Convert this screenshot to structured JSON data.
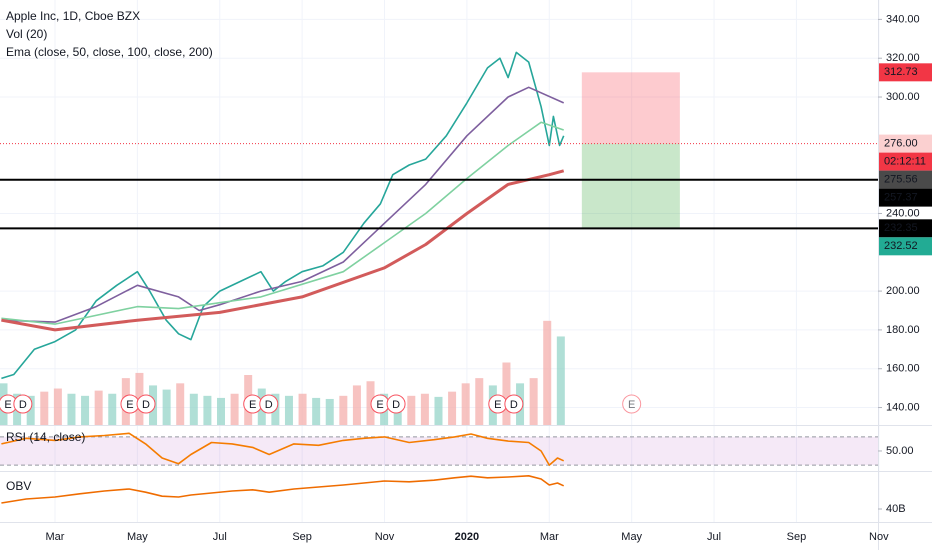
{
  "chart_data": [
    {
      "type": "line",
      "title": "Apple Inc, 1D, Cboe BZX",
      "indicators": [
        "Vol (20)",
        "Ema (close, 50, close, 100, close, 200)"
      ],
      "xlim": [
        1.665,
        22.98
      ],
      "ylim": [
        131,
        350
      ],
      "xticks": [
        {
          "value": 3,
          "label": "Mar"
        },
        {
          "value": 5,
          "label": "May"
        },
        {
          "value": 7,
          "label": "Jul"
        },
        {
          "value": 9,
          "label": "Sep"
        },
        {
          "value": 11,
          "label": "Nov"
        },
        {
          "value": 13,
          "label": "2020"
        },
        {
          "value": 15,
          "label": "Mar"
        },
        {
          "value": 17,
          "label": "May"
        },
        {
          "value": 19,
          "label": "Jul"
        },
        {
          "value": 21,
          "label": "Sep"
        },
        {
          "value": 23,
          "label": "Nov"
        }
      ],
      "yticks": [
        {
          "value": 340,
          "label": "340.00"
        },
        {
          "value": 320,
          "label": "320.00"
        },
        {
          "value": 300,
          "label": "300.00"
        },
        {
          "value": 240,
          "label": "240.00"
        },
        {
          "value": 200,
          "label": "200.00"
        },
        {
          "value": 180,
          "label": "180.00"
        },
        {
          "value": 160,
          "label": "160.00"
        },
        {
          "value": 140,
          "label": "140.00"
        }
      ],
      "grid": true,
      "series": [
        {
          "color": "#26a69a",
          "x": [
            1.7,
            2.0,
            2.5,
            3.0,
            3.5,
            4.0,
            4.5,
            5.0,
            5.3,
            5.7,
            6.0,
            6.3,
            6.6,
            7.0,
            7.5,
            8.0,
            8.3,
            8.6,
            9.0,
            9.5,
            10.0,
            10.5,
            10.9,
            11.2,
            11.6,
            12.0,
            12.5,
            13.0,
            13.5,
            13.8,
            14.0,
            14.2,
            14.5,
            14.8,
            15.0,
            15.1,
            15.25,
            15.35
          ],
          "values": [
            155,
            157,
            170,
            174,
            180,
            195,
            203,
            210,
            200,
            185,
            178,
            175,
            192,
            200,
            205,
            210,
            200,
            205,
            210,
            213,
            220,
            235,
            245,
            260,
            265,
            268,
            280,
            297,
            315,
            320,
            310,
            323,
            318,
            295,
            275,
            290,
            275,
            280
          ]
        },
        {
          "color": "#7e5f9e",
          "x": [
            1.7,
            3,
            4,
            5,
            6,
            6.5,
            7,
            8,
            9,
            10,
            11,
            12,
            13,
            14,
            14.5,
            15.35
          ],
          "values": [
            185,
            184,
            192,
            203,
            197,
            190,
            193,
            200,
            205,
            215,
            235,
            255,
            280,
            300,
            305,
            297
          ]
        },
        {
          "color": "#7fd1a0",
          "x": [
            1.7,
            3,
            5,
            6,
            8,
            10,
            12,
            13,
            14,
            14.8,
            15.35
          ],
          "values": [
            186,
            183,
            192,
            191,
            197,
            210,
            240,
            258,
            275,
            287,
            283
          ]
        },
        {
          "color": "#d25b5b",
          "x": [
            1.7,
            3,
            5,
            7,
            9,
            11,
            12,
            13,
            14,
            15,
            15.35
          ],
          "values": [
            185,
            180,
            185,
            189,
            197,
            212,
            224,
            240,
            255,
            260,
            262
          ]
        }
      ],
      "volume": {
        "up_color": "#8fd1c4",
        "down_color": "#f3a9a7",
        "ylim": [
          0,
          120
        ],
        "x": [
          1.75,
          2.08,
          2.41,
          2.74,
          3.07,
          3.4,
          3.73,
          4.06,
          4.39,
          4.72,
          5.05,
          5.38,
          5.71,
          6.04,
          6.37,
          6.7,
          7.03,
          7.36,
          7.69,
          8.02,
          8.35,
          8.68,
          9.01,
          9.34,
          9.67,
          10.0,
          10.33,
          10.66,
          10.99,
          11.32,
          11.65,
          11.98,
          12.31,
          12.64,
          12.97,
          13.3,
          13.63,
          13.96,
          14.29,
          14.62,
          14.95,
          15.28
        ],
        "values": [
          40,
          30,
          28,
          32,
          35,
          30,
          28,
          33,
          30,
          45,
          50,
          38,
          34,
          40,
          30,
          28,
          26,
          30,
          48,
          35,
          30,
          28,
          30,
          26,
          25,
          28,
          38,
          42,
          30,
          26,
          28,
          30,
          27,
          32,
          40,
          45,
          38,
          60,
          40,
          45,
          100,
          85
        ]
      },
      "hlines": [
        257.37,
        232.35
      ],
      "last_price": 276,
      "position": {
        "x0": 15.79,
        "x1": 18.17,
        "entry": 276,
        "target": 312.73,
        "stop": 232.52
      },
      "events": [
        {
          "label": "E",
          "x": 1.86
        },
        {
          "label": "D",
          "x": 2.22
        },
        {
          "label": "E",
          "x": 4.82
        },
        {
          "label": "D",
          "x": 5.21
        },
        {
          "label": "E",
          "x": 7.8
        },
        {
          "label": "D",
          "x": 8.19
        },
        {
          "label": "E",
          "x": 10.89
        },
        {
          "label": "D",
          "x": 11.28
        },
        {
          "label": "E",
          "x": 13.75
        },
        {
          "label": "D",
          "x": 14.14
        },
        {
          "label": "E",
          "x": 17.0
        }
      ],
      "axis_labels": [
        {
          "value": 312.73,
          "label": "312.73",
          "bg": "#f23645",
          "fg": "#ffffff"
        },
        {
          "value": 276,
          "label": "276.00",
          "bg": "#fbd0d0",
          "fg": "#c62828"
        },
        {
          "label": "02:12:11",
          "bg": "#f23645",
          "fg": "#ffffff"
        },
        {
          "value": 275.56,
          "label": "275.56",
          "bg": "#4a4a4a",
          "fg": "#ffffff"
        },
        {
          "value": 257.37,
          "label": "257.37",
          "bg": "#000000",
          "fg": "#ffffff"
        },
        {
          "value": 232.35,
          "label": "232.35",
          "bg": "#000000",
          "fg": "#ffffff"
        },
        {
          "value": 232.52,
          "label": "232.52",
          "bg": "#22ab94",
          "fg": "#ffffff"
        }
      ]
    },
    {
      "type": "line",
      "title": "RSI (14, close)",
      "ylim": [
        23,
        84
      ],
      "yticks": [
        {
          "value": 50,
          "label": "50.00"
        }
      ],
      "bands": [
        30,
        70
      ],
      "series": [
        {
          "color": "#f57c00",
          "x": [
            1.7,
            2.3,
            3,
            3.6,
            4.2,
            4.8,
            5.2,
            5.6,
            6,
            6.3,
            6.8,
            7.3,
            7.8,
            8.2,
            8.8,
            9.4,
            10,
            10.5,
            11,
            11.6,
            12.2,
            12.7,
            13.1,
            13.5,
            14,
            14.5,
            14.8,
            15.0,
            15.2,
            15.35
          ],
          "values": [
            60,
            68,
            65,
            70,
            72,
            75,
            60,
            40,
            32,
            45,
            62,
            60,
            55,
            45,
            60,
            58,
            65,
            68,
            70,
            62,
            66,
            70,
            74,
            68,
            64,
            62,
            50,
            30,
            40,
            36
          ]
        }
      ]
    },
    {
      "type": "line",
      "title": "OBV",
      "ylim": [
        36.75,
        49.25
      ],
      "yticks": [
        {
          "value": 40,
          "label": "40B"
        }
      ],
      "series": [
        {
          "color": "#ef6c00",
          "x": [
            1.7,
            2.3,
            3,
            3.6,
            4.2,
            4.8,
            5.2,
            5.6,
            6,
            6.3,
            6.8,
            7.3,
            7.8,
            8.2,
            8.8,
            9.4,
            10,
            10.5,
            11,
            11.6,
            12.2,
            12.7,
            13.1,
            13.5,
            14,
            14.5,
            14.8,
            15.0,
            15.2,
            15.35
          ],
          "values": [
            41.5,
            42.5,
            43,
            43.8,
            44.5,
            45,
            44.2,
            43.2,
            43,
            43.5,
            44,
            44.5,
            44.8,
            44.2,
            45,
            45.5,
            46,
            46.5,
            47,
            46.8,
            47.2,
            47.8,
            48.2,
            47.8,
            48,
            48.3,
            47.5,
            46,
            46.5,
            45.8
          ]
        }
      ]
    }
  ]
}
